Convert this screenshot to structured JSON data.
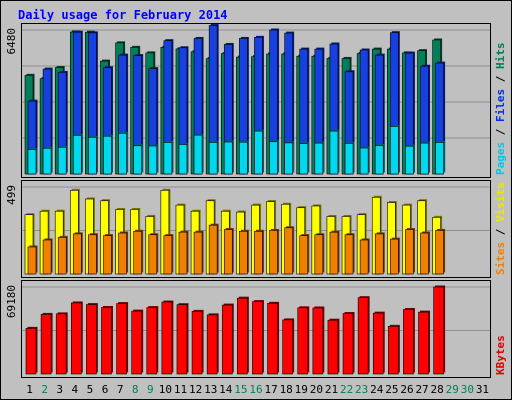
{
  "chart_data": {
    "type": "bar",
    "title": "Daily usage for February 2014",
    "days": [
      "1",
      "2",
      "3",
      "4",
      "5",
      "6",
      "7",
      "8",
      "9",
      "10",
      "11",
      "12",
      "13",
      "14",
      "15",
      "16",
      "17",
      "18",
      "19",
      "20",
      "21",
      "22",
      "23",
      "24",
      "25",
      "26",
      "27",
      "28",
      "29",
      "30",
      "31"
    ],
    "weekend_days": [
      2,
      8,
      9,
      15,
      16,
      22,
      23,
      29,
      30
    ],
    "panels": [
      {
        "id": "top",
        "scale_max": 6480,
        "scale_label": "6480",
        "side_labels": [
          {
            "text": "Pages",
            "color": "#00c8e8"
          },
          {
            "text": "Files",
            "color": "#0030e0"
          },
          {
            "text": "Hits",
            "color": "#008050"
          }
        ],
        "series": [
          {
            "name": "Hits",
            "color": "#00805a",
            "values": [
              4440,
              4290,
              4790,
              6390,
              6380,
              5080,
              5900,
              5700,
              5450,
              5700,
              5630,
              5500,
              5190,
              5420,
              5260,
              5280,
              5400,
              5400,
              5300,
              5300,
              5200,
              5200,
              5420,
              5620,
              5620,
              5450,
              5550,
              6030
            ]
          },
          {
            "name": "Files",
            "color": "#1640e0",
            "values": [
              3280,
              4720,
              4570,
              6380,
              6350,
              4780,
              5350,
              5330,
              4740,
              6000,
              5680,
              6100,
              6680,
              5830,
              6100,
              6150,
              6480,
              6340,
              5620,
              5620,
              5850,
              4600,
              5580,
              5350,
              6360,
              5440,
              4850,
              4990
            ]
          },
          {
            "name": "Pages",
            "color": "#00d8f0",
            "values": [
              1100,
              1160,
              1200,
              1740,
              1650,
              1700,
              1830,
              1270,
              1260,
              1420,
              1330,
              1750,
              1420,
              1440,
              1430,
              1930,
              1450,
              1400,
              1370,
              1390,
              1930,
              1380,
              1170,
              1280,
              2140,
              1250,
              1390,
              1420
            ]
          }
        ]
      },
      {
        "id": "middle",
        "scale_max": 499,
        "scale_label": "499",
        "side_labels": [
          {
            "text": "Sites",
            "color": "#f08000"
          },
          {
            "text": "Visits",
            "color": "#e8e800"
          }
        ],
        "series": [
          {
            "name": "Visits",
            "color": "#ffff00",
            "values": [
              340,
              360,
              360,
              480,
              430,
              420,
              370,
              370,
              330,
              480,
              395,
              360,
              420,
              360,
              355,
              395,
              415,
              400,
              380,
              390,
              330,
              330,
              340,
              440,
              410,
              395,
              420,
              325
            ]
          },
          {
            "name": "Sites",
            "color": "#f08000",
            "values": [
              155,
              195,
              210,
              230,
              225,
              220,
              235,
              245,
              225,
              220,
              240,
              240,
              280,
              255,
              245,
              245,
              250,
              265,
              220,
              225,
              240,
              225,
              195,
              230,
              200,
              255,
              235,
              250
            ]
          }
        ]
      },
      {
        "id": "bottom",
        "scale_max": 69180,
        "scale_label": "69180",
        "side_labels": [
          {
            "text": "KBytes",
            "color": "#e00000"
          }
        ],
        "series": [
          {
            "name": "KBytes",
            "color": "#ff0000",
            "values": [
              36300,
              47400,
              47800,
              56500,
              55200,
              52900,
              56000,
              50000,
              52800,
              57200,
              55100,
              49800,
              47000,
              54800,
              60300,
              57600,
              56200,
              43000,
              52600,
              52500,
              42800,
              48100,
              60700,
              48400,
              37900,
              51300,
              49200,
              69180
            ]
          }
        ]
      }
    ]
  }
}
